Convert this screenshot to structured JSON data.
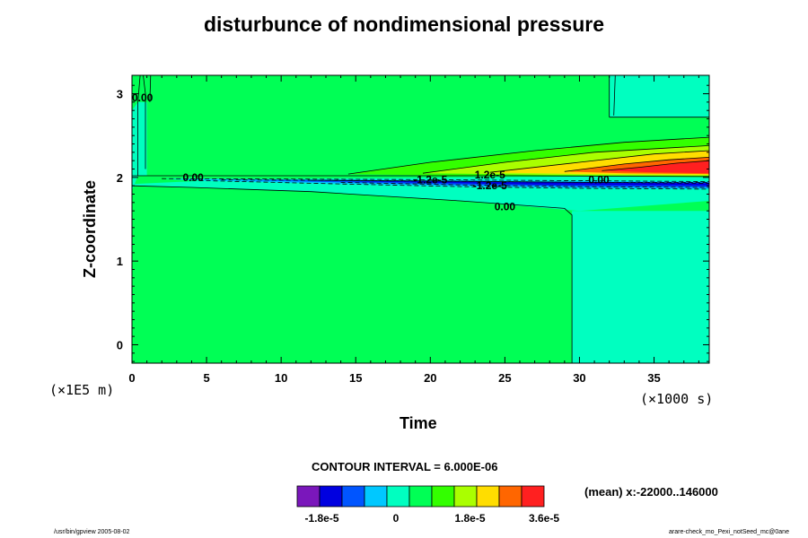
{
  "chart_data": {
    "type": "heatmap",
    "title": "disturbunce of nondimensional pressure",
    "xlabel": "Time",
    "ylabel": "Z-coordinate",
    "x_unit": "(×1000 s)",
    "y_unit": "(×1E5 m)",
    "xlim": [
      0,
      38.7
    ],
    "ylim": [
      -0.22,
      3.22
    ],
    "x_ticks": [
      0,
      5,
      10,
      15,
      20,
      25,
      30,
      35
    ],
    "y_ticks": [
      0,
      1,
      2,
      3
    ],
    "contour_interval": "CONTOUR INTERVAL = 6.000E-06",
    "mean_note": "(mean) x:-22000..146000",
    "contour_labels": [
      {
        "text": "0.00",
        "x": 4.1,
        "y": 2.0
      },
      {
        "text": "0.00",
        "x": 25.0,
        "y": 1.65
      },
      {
        "text": "1.2e-5",
        "x": 24.0,
        "y": 2.03
      },
      {
        "text": "-1.2e-5",
        "x": 20.0,
        "y": 1.97
      },
      {
        "text": "-1.2e-5",
        "x": 24.0,
        "y": 1.9
      },
      {
        "text": "0.00",
        "x": 31.3,
        "y": 1.97
      },
      {
        "text": "0.00",
        "x": 0.7,
        "y": 2.95
      }
    ],
    "colorbar": {
      "levels": [
        -2.4e-05,
        -1.8e-05,
        -1.2e-05,
        -6e-06,
        0,
        6e-06,
        1.2e-05,
        1.8e-05,
        2.4e-05,
        3e-05,
        3.6e-05
      ],
      "tick_labels": [
        "-1.8e-5",
        "0",
        "1.8e-5",
        "3.6e-5"
      ],
      "tick_values": [
        -1.8e-05,
        0,
        1.8e-05,
        3.6e-05
      ],
      "colors": [
        "#7a17bb",
        "#0000e0",
        "#0055ff",
        "#00c8ff",
        "#00ffc0",
        "#00ff55",
        "#33ff00",
        "#aaff00",
        "#ffdd00",
        "#ff6600",
        "#ff2020"
      ]
    }
  },
  "footer": {
    "left": "/usr/bin/gpview 2005-08-02",
    "right": "arare-check_mo_Pexi_notSeed_mc@0ane"
  }
}
